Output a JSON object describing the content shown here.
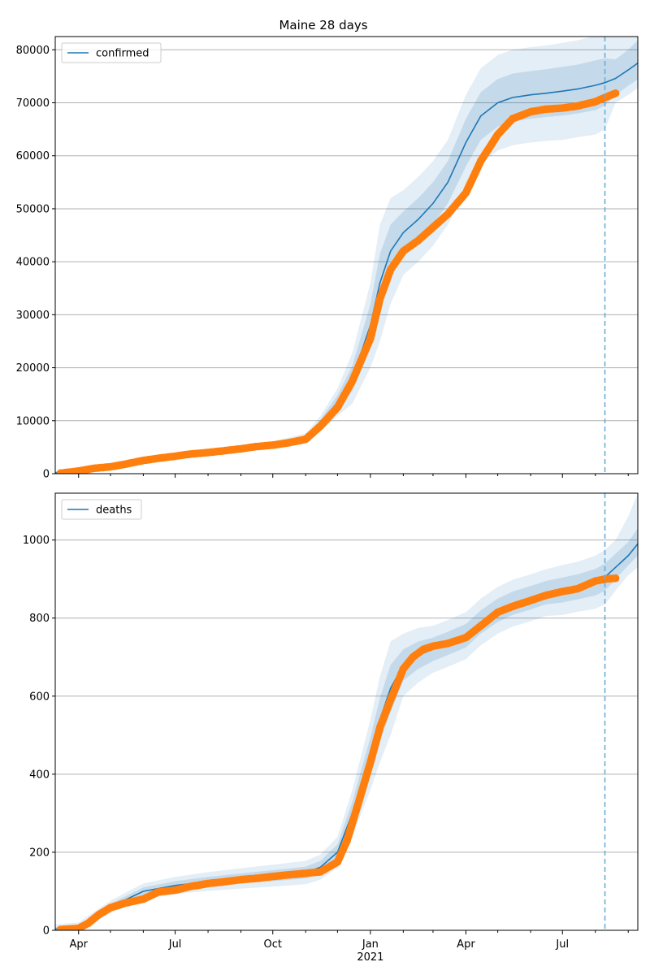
{
  "title": "Maine 28 days",
  "colors": {
    "model_line": "#1f77b4",
    "observed_points": "#ff7f0e",
    "band": "#1f77b4",
    "grid": "#b0b0b0",
    "forecast_marker": "#6baed6"
  },
  "x_axis": {
    "type": "date",
    "range": [
      "2020-03-10",
      "2021-09-10"
    ],
    "ticks": [
      {
        "date": "2020-04-01",
        "label": "Apr"
      },
      {
        "date": "2020-07-01",
        "label": "Jul"
      },
      {
        "date": "2020-10-01",
        "label": "Oct"
      },
      {
        "date": "2021-01-01",
        "label": "Jan"
      },
      {
        "date": "2021-04-01",
        "label": "Apr"
      },
      {
        "date": "2021-07-01",
        "label": "Jul"
      }
    ],
    "year_label": "2021",
    "forecast_start": "2021-08-10"
  },
  "chart_data": [
    {
      "type": "line",
      "legend": "confirmed",
      "legend_position": "top-left",
      "grid": "horizontal",
      "ylim": [
        0,
        82500
      ],
      "yticks": [
        0,
        10000,
        20000,
        30000,
        40000,
        50000,
        60000,
        70000,
        80000
      ],
      "model": {
        "name": "confirmed",
        "x": [
          "2020-03-10",
          "2020-04-01",
          "2020-05-01",
          "2020-06-01",
          "2020-07-01",
          "2020-08-01",
          "2020-09-01",
          "2020-10-01",
          "2020-11-01",
          "2020-11-15",
          "2020-12-01",
          "2020-12-15",
          "2021-01-01",
          "2021-01-10",
          "2021-01-20",
          "2021-02-01",
          "2021-02-15",
          "2021-03-01",
          "2021-03-15",
          "2021-04-01",
          "2021-04-15",
          "2021-05-01",
          "2021-05-15",
          "2021-06-01",
          "2021-06-15",
          "2021-07-01",
          "2021-07-15",
          "2021-08-01",
          "2021-08-10",
          "2021-08-20",
          "2021-09-01",
          "2021-09-10"
        ],
        "y": [
          200,
          600,
          1400,
          2700,
          3500,
          4100,
          4700,
          5500,
          6800,
          9500,
          13500,
          18000,
          28000,
          36000,
          42000,
          45500,
          48000,
          51000,
          55000,
          62500,
          67500,
          70000,
          71000,
          71500,
          71800,
          72200,
          72600,
          73300,
          73800,
          74600,
          76200,
          77500
        ],
        "band_inner": {
          "lower": [
            100,
            450,
            1250,
            2450,
            3250,
            3850,
            4450,
            5200,
            6400,
            8800,
            12200,
            15600,
            24000,
            30500,
            37000,
            41500,
            44000,
            47000,
            51000,
            58000,
            63000,
            65500,
            66500,
            67000,
            67300,
            67600,
            68000,
            68600,
            69500,
            71500,
            73200,
            74400
          ],
          "upper": [
            300,
            750,
            1550,
            2950,
            3750,
            4350,
            4950,
            5800,
            7200,
            10200,
            14800,
            20400,
            32000,
            41500,
            47000,
            49500,
            52000,
            55000,
            59000,
            67000,
            72000,
            74500,
            75500,
            76000,
            76300,
            76800,
            77200,
            78000,
            78400,
            78200,
            80000,
            81800
          ]
        },
        "band_outer": {
          "lower": [
            0,
            300,
            1100,
            2200,
            3000,
            3600,
            4200,
            4900,
            6000,
            8100,
            10900,
            13200,
            20000,
            25000,
            32000,
            37500,
            40000,
            43000,
            47000,
            53500,
            58500,
            61000,
            62000,
            62500,
            62800,
            63000,
            63500,
            64000,
            65000,
            70000,
            71500,
            72800
          ],
          "upper": [
            400,
            900,
            1700,
            3200,
            4000,
            4600,
            5200,
            6100,
            7600,
            10900,
            16100,
            22800,
            36000,
            47000,
            52000,
            53500,
            56000,
            59000,
            63000,
            71500,
            76500,
            79000,
            80000,
            80500,
            80800,
            81300,
            81800,
            82600,
            82600,
            82500,
            82500,
            82500
          ]
        }
      },
      "observed": {
        "x": [
          "2020-03-15",
          "2020-04-01",
          "2020-04-15",
          "2020-05-01",
          "2020-05-15",
          "2020-06-01",
          "2020-06-15",
          "2020-07-01",
          "2020-07-15",
          "2020-08-01",
          "2020-08-15",
          "2020-09-01",
          "2020-09-15",
          "2020-10-01",
          "2020-10-15",
          "2020-11-01",
          "2020-11-15",
          "2020-12-01",
          "2020-12-15",
          "2021-01-01",
          "2021-01-10",
          "2021-01-20",
          "2021-02-01",
          "2021-02-15",
          "2021-03-01",
          "2021-03-15",
          "2021-04-01",
          "2021-04-15",
          "2021-05-01",
          "2021-05-15",
          "2021-06-01",
          "2021-06-15",
          "2021-07-01",
          "2021-07-15",
          "2021-08-01",
          "2021-08-10",
          "2021-08-20"
        ],
        "y": [
          100,
          500,
          1000,
          1300,
          1800,
          2500,
          2900,
          3300,
          3700,
          4000,
          4300,
          4700,
          5100,
          5400,
          5800,
          6500,
          9000,
          12500,
          17500,
          25500,
          33000,
          38500,
          42000,
          44000,
          46500,
          49000,
          53000,
          59000,
          64000,
          67000,
          68300,
          68800,
          69000,
          69400,
          70200,
          71000,
          71800
        ]
      }
    },
    {
      "type": "line",
      "legend": "deaths",
      "legend_position": "top-left",
      "grid": "horizontal",
      "ylim": [
        0,
        1120
      ],
      "yticks": [
        0,
        200,
        400,
        600,
        800,
        1000
      ],
      "model": {
        "name": "deaths",
        "x": [
          "2020-03-10",
          "2020-04-01",
          "2020-05-01",
          "2020-06-01",
          "2020-07-01",
          "2020-08-01",
          "2020-09-01",
          "2020-10-01",
          "2020-11-01",
          "2020-11-15",
          "2020-12-01",
          "2020-12-15",
          "2021-01-01",
          "2021-01-10",
          "2021-01-20",
          "2021-02-01",
          "2021-02-15",
          "2021-03-01",
          "2021-03-15",
          "2021-04-01",
          "2021-04-15",
          "2021-05-01",
          "2021-05-15",
          "2021-06-01",
          "2021-06-15",
          "2021-07-01",
          "2021-07-15",
          "2021-08-01",
          "2021-08-10",
          "2021-08-20",
          "2021-09-01",
          "2021-09-10"
        ],
        "y": [
          3,
          8,
          60,
          100,
          115,
          125,
          133,
          140,
          148,
          162,
          200,
          300,
          450,
          540,
          620,
          680,
          705,
          720,
          735,
          755,
          790,
          820,
          838,
          852,
          865,
          872,
          880,
          892,
          905,
          930,
          960,
          990
        ],
        "band_inner": {
          "lower": [
            0,
            4,
            52,
            90,
            104,
            113,
            120,
            126,
            133,
            146,
            180,
            270,
            405,
            485,
            560,
            640,
            670,
            690,
            705,
            725,
            760,
            790,
            808,
            822,
            835,
            840,
            848,
            858,
            870,
            900,
            935,
            960
          ],
          "upper": [
            8,
            14,
            68,
            110,
            126,
            137,
            146,
            154,
            163,
            178,
            220,
            330,
            495,
            595,
            680,
            720,
            740,
            750,
            765,
            785,
            820,
            850,
            868,
            882,
            895,
            904,
            912,
            926,
            940,
            965,
            995,
            1030
          ]
        },
        "band_outer": {
          "lower": [
            0,
            0,
            44,
            80,
            93,
            101,
            107,
            112,
            118,
            130,
            160,
            240,
            360,
            430,
            500,
            600,
            635,
            660,
            675,
            695,
            730,
            760,
            778,
            792,
            805,
            808,
            816,
            824,
            835,
            870,
            910,
            930
          ],
          "upper": [
            15,
            20,
            76,
            120,
            137,
            149,
            159,
            168,
            178,
            194,
            240,
            360,
            540,
            650,
            740,
            760,
            775,
            780,
            795,
            815,
            850,
            880,
            898,
            912,
            925,
            936,
            944,
            960,
            975,
            1000,
            1060,
            1120
          ]
        }
      },
      "observed": {
        "x": [
          "2020-03-15",
          "2020-04-01",
          "2020-04-10",
          "2020-04-20",
          "2020-05-01",
          "2020-05-15",
          "2020-06-01",
          "2020-06-15",
          "2020-07-01",
          "2020-07-15",
          "2020-08-01",
          "2020-08-15",
          "2020-09-01",
          "2020-09-15",
          "2020-10-01",
          "2020-10-15",
          "2020-11-01",
          "2020-11-15",
          "2020-12-01",
          "2020-12-10",
          "2020-12-20",
          "2021-01-01",
          "2021-01-10",
          "2021-01-20",
          "2021-02-01",
          "2021-02-10",
          "2021-02-20",
          "2021-03-01",
          "2021-03-15",
          "2021-04-01",
          "2021-04-15",
          "2021-05-01",
          "2021-05-15",
          "2021-06-01",
          "2021-06-15",
          "2021-07-01",
          "2021-07-15",
          "2021-08-01",
          "2021-08-10",
          "2021-08-20"
        ],
        "y": [
          2,
          5,
          18,
          40,
          58,
          70,
          80,
          98,
          103,
          112,
          120,
          124,
          130,
          133,
          138,
          142,
          146,
          150,
          175,
          230,
          320,
          430,
          520,
          590,
          670,
          700,
          720,
          728,
          735,
          750,
          780,
          815,
          830,
          845,
          858,
          868,
          875,
          895,
          900,
          902
        ]
      }
    }
  ]
}
